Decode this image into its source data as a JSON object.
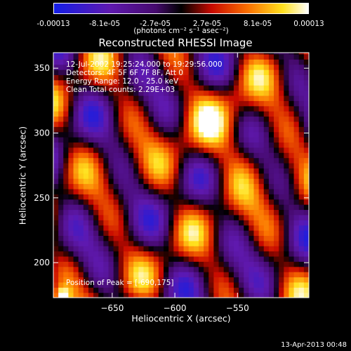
{
  "colorbar": {
    "tick_labels": [
      "-0.00013",
      "-8.1e-05",
      "-2.7e-05",
      "2.7e-05",
      "8.1e-05",
      "0.00013"
    ],
    "unit": "(photons cm⁻² s⁻¹ asec⁻²)",
    "min": -0.00013,
    "max": 0.00013
  },
  "chart_data": {
    "type": "heatmap",
    "title": "Reconstructed RHESSI Image",
    "xlabel": "Heliocentric X (arcsec)",
    "ylabel": "Heliocentric Y (arcsec)",
    "xlim": [
      -697,
      -493
    ],
    "ylim": [
      173,
      362
    ],
    "xticks": [
      -650,
      -600,
      -550
    ],
    "yticks": [
      200,
      250,
      300,
      350
    ],
    "colormap": "rainbow-black-purple-red-orange-yellow-white",
    "annotations": [
      "12-Jul-2002 19:25:24.000 to 19:29:56.000",
      "Detectors: 4F 5F 6F 7F 8F, Att 0",
      "Energy Range: 12.0 - 25.0 keV",
      "Clean      Total counts: 2.29E+03"
    ],
    "peak_label": "Position of Peak = [-690,175]",
    "peak": [
      -690,
      175
    ]
  },
  "footer": {
    "date": "13-Apr-2013 00:48"
  }
}
